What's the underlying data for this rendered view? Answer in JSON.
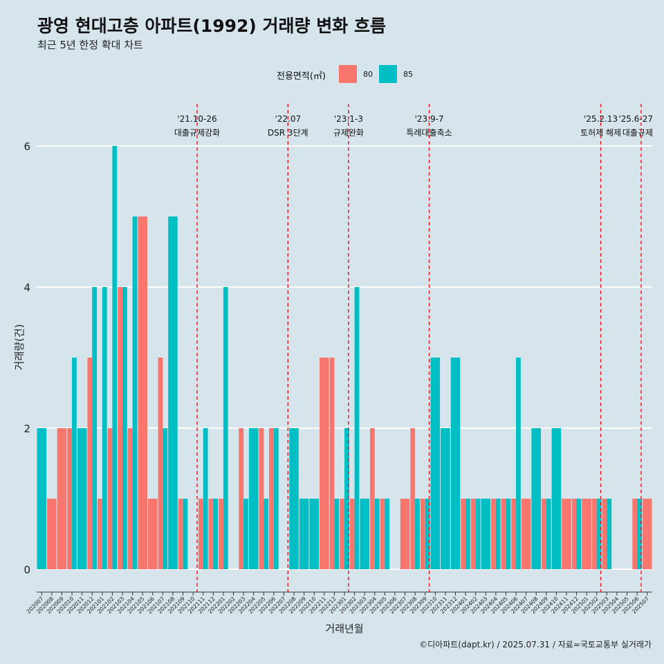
{
  "title": "광영 현대고층 아파트(1992) 거래량 변화 흐름",
  "subtitle": "최근 5년 한정 확대 차트",
  "caption": "©디아파트(dapt.kr) / 2025.07.31 / 자료=국토교통부 실거래가",
  "colors": {
    "s80": "#f8766d",
    "s85": "#00bfc4",
    "event": "#e8141c",
    "grid": "#ffffff",
    "bg": "#d6e4ec"
  },
  "chart_data": {
    "type": "bar",
    "title": "광영 현대고층 아파트(1992) 거래량 변화 흐름",
    "xlabel": "거래년월",
    "ylabel": "거래량(건)",
    "ylim": [
      0,
      6
    ],
    "yticks": [
      0,
      2,
      4,
      6
    ],
    "legend_title": "전용면적(㎡)",
    "categories": [
      "202007",
      "202008",
      "202009",
      "202010",
      "202011",
      "202012",
      "202101",
      "202102",
      "202103",
      "202104",
      "202105",
      "202106",
      "202107",
      "202108",
      "202109",
      "202110",
      "202111",
      "202112",
      "202201",
      "202202",
      "202203",
      "202204",
      "202205",
      "202206",
      "202207",
      "202208",
      "202209",
      "202210",
      "202211",
      "202212",
      "202301",
      "202302",
      "202303",
      "202304",
      "202305",
      "202306",
      "202307",
      "202308",
      "202309",
      "202310",
      "202311",
      "202312",
      "202401",
      "202402",
      "202403",
      "202404",
      "202405",
      "202406",
      "202407",
      "202408",
      "202409",
      "202410",
      "202411",
      "202412",
      "202501",
      "202502",
      "202503",
      "202504",
      "202505",
      "202506",
      "202507"
    ],
    "series": [
      {
        "name": "80",
        "values": [
          null,
          1,
          2,
          2,
          null,
          3,
          1,
          2,
          4,
          2,
          5,
          1,
          3,
          null,
          1,
          null,
          1,
          1,
          1,
          null,
          2,
          null,
          2,
          2,
          null,
          null,
          null,
          null,
          3,
          3,
          1,
          1,
          null,
          2,
          1,
          null,
          1,
          2,
          1,
          null,
          null,
          null,
          1,
          1,
          null,
          1,
          1,
          1,
          1,
          null,
          1,
          null,
          1,
          1,
          1,
          1,
          1,
          null,
          null,
          1,
          1
        ]
      },
      {
        "name": "85",
        "values": [
          2,
          null,
          null,
          3,
          2,
          4,
          4,
          6,
          4,
          5,
          null,
          null,
          2,
          5,
          1,
          null,
          2,
          1,
          4,
          null,
          1,
          2,
          1,
          2,
          null,
          2,
          1,
          1,
          null,
          1,
          2,
          4,
          1,
          1,
          1,
          null,
          null,
          1,
          1,
          3,
          2,
          3,
          1,
          1,
          1,
          1,
          1,
          3,
          null,
          2,
          1,
          2,
          null,
          1,
          null,
          1,
          1,
          null,
          null,
          1,
          null
        ]
      }
    ],
    "events": [
      {
        "date": "'21.10-26",
        "label": "대출규제강화",
        "after": "202110"
      },
      {
        "date": "'22.07",
        "label": "DSR 3단계",
        "after": "202207"
      },
      {
        "date": "'23.1-3",
        "label": "규제완화",
        "after": "202301"
      },
      {
        "date": "'23.9-7",
        "label": "특례대출축소",
        "after": "202309"
      },
      {
        "date": "'25.2.13",
        "label": "토허제 해제",
        "after": "202502"
      },
      {
        "date": "'25.6-27",
        "label": "대출규제",
        "after": "202506"
      }
    ]
  }
}
